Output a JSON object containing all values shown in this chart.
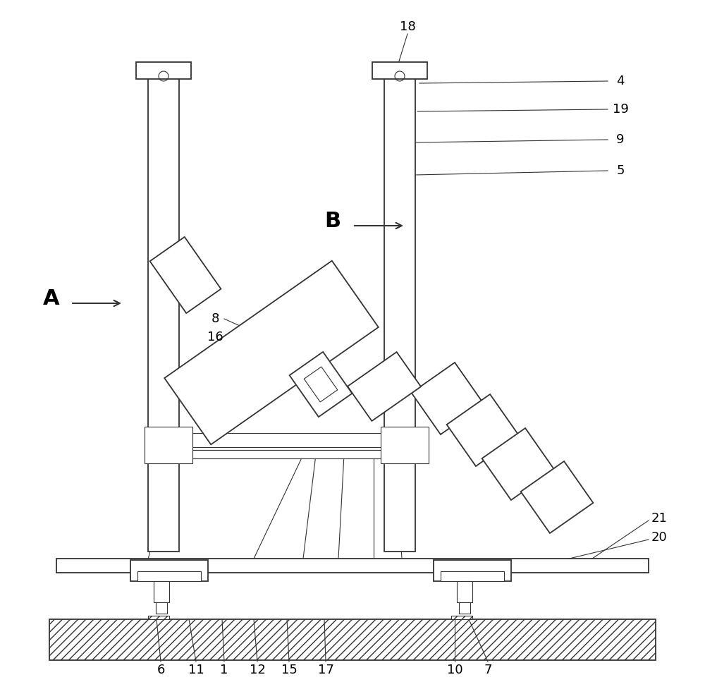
{
  "bg_color": "#ffffff",
  "line_color": "#333333",
  "lw": 1.3,
  "tlw": 0.8,
  "fig_w": 10.0,
  "fig_h": 9.84,
  "label_fs": 13,
  "arrow_fs": 20,
  "xlim": [
    0,
    1000
  ],
  "ylim": [
    0,
    984
  ]
}
